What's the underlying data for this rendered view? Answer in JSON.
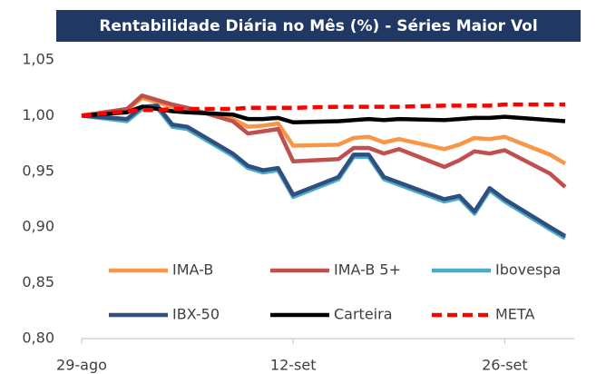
{
  "chart_data": {
    "type": "line",
    "title": "Rentabilidade Diária no Mês (%) - Séries Maior Vol",
    "x": [
      0,
      3,
      4,
      5,
      6,
      7,
      10,
      11,
      12,
      13,
      14,
      17,
      18,
      19,
      20,
      21,
      24,
      25,
      26,
      27,
      28,
      31,
      32
    ],
    "xlim": [
      0,
      32
    ],
    "xticks": [
      {
        "value": 0,
        "label": "29-ago"
      },
      {
        "value": 14,
        "label": "12-set"
      },
      {
        "value": 28,
        "label": "26-set"
      }
    ],
    "ylim": [
      0.8,
      1.05
    ],
    "yticks": [
      {
        "value": 0.8,
        "label": "0,80"
      },
      {
        "value": 0.85,
        "label": "0,85"
      },
      {
        "value": 0.9,
        "label": "0,90"
      },
      {
        "value": 0.95,
        "label": "0,95"
      },
      {
        "value": 1.0,
        "label": "1,00"
      },
      {
        "value": 1.05,
        "label": "1,05"
      }
    ],
    "grid": false,
    "legend": "bottom",
    "series": [
      {
        "name": "IMA-B",
        "color": "#f79646",
        "dash": false,
        "values": [
          1.0,
          1.005,
          1.016,
          1.012,
          1.008,
          1.006,
          0.997,
          0.99,
          0.991,
          0.993,
          0.973,
          0.974,
          0.98,
          0.981,
          0.976,
          0.979,
          0.97,
          0.974,
          0.98,
          0.979,
          0.981,
          0.965,
          0.957
        ]
      },
      {
        "name": "IMA-B 5+",
        "color": "#c0504d",
        "dash": false,
        "values": [
          1.0,
          1.006,
          1.018,
          1.014,
          1.01,
          1.007,
          0.995,
          0.984,
          0.986,
          0.988,
          0.959,
          0.961,
          0.971,
          0.971,
          0.966,
          0.97,
          0.954,
          0.96,
          0.968,
          0.966,
          0.969,
          0.948,
          0.936
        ]
      },
      {
        "name": "Ibovespa",
        "color": "#4bacc6",
        "dash": false,
        "values": [
          1.0,
          0.995,
          1.006,
          1.007,
          0.99,
          0.988,
          0.964,
          0.953,
          0.949,
          0.951,
          0.927,
          0.943,
          0.963,
          0.963,
          0.943,
          0.938,
          0.923,
          0.926,
          0.912,
          0.933,
          0.923,
          0.898,
          0.89
        ]
      },
      {
        "name": "IBX-50",
        "color": "#2f4f7f",
        "dash": false,
        "values": [
          1.0,
          0.997,
          1.008,
          1.009,
          0.992,
          0.99,
          0.966,
          0.955,
          0.951,
          0.953,
          0.929,
          0.945,
          0.965,
          0.965,
          0.945,
          0.94,
          0.925,
          0.928,
          0.914,
          0.935,
          0.925,
          0.9,
          0.892
        ]
      },
      {
        "name": "Carteira",
        "color": "#000000",
        "dash": false,
        "values": [
          1.0,
          1.003,
          1.008,
          1.006,
          1.004,
          1.003,
          1.001,
          0.997,
          0.997,
          0.998,
          0.994,
          0.995,
          0.996,
          0.997,
          0.996,
          0.997,
          0.996,
          0.997,
          0.998,
          0.998,
          0.999,
          0.996,
          0.995
        ]
      },
      {
        "name": "META",
        "color": "#ff0000",
        "dash": true,
        "values": [
          1.0,
          1.004,
          1.005,
          1.005,
          1.006,
          1.006,
          1.006,
          1.007,
          1.007,
          1.007,
          1.007,
          1.008,
          1.008,
          1.008,
          1.008,
          1.008,
          1.009,
          1.009,
          1.009,
          1.009,
          1.01,
          1.01,
          1.01
        ]
      }
    ]
  }
}
